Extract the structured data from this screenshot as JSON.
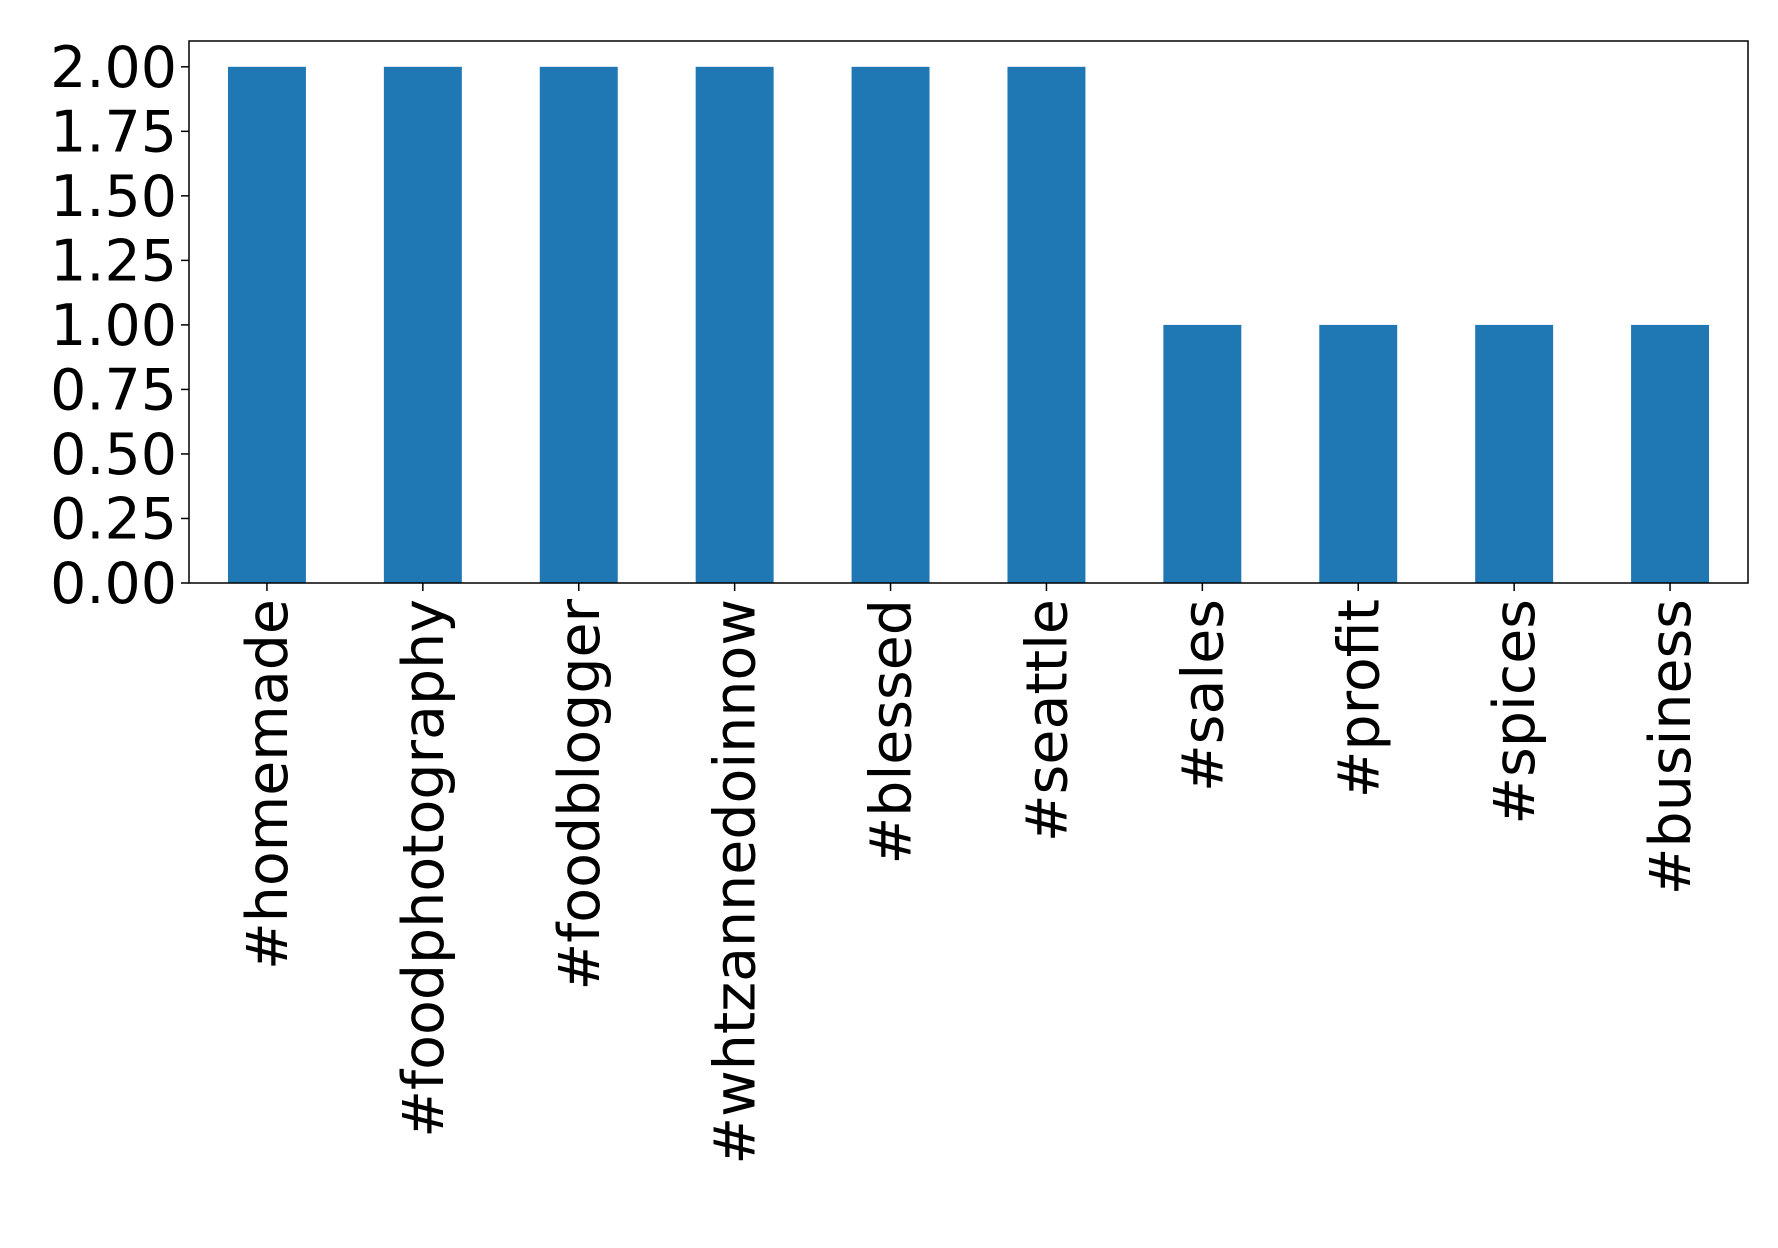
{
  "chart_data": {
    "type": "bar",
    "categories": [
      "#homemade",
      "#foodphotography",
      "#foodblogger",
      "#whtzannedoinnow",
      "#blessed",
      "#seattle",
      "#sales",
      "#profit",
      "#spices",
      "#business"
    ],
    "values": [
      2,
      2,
      2,
      2,
      2,
      2,
      1,
      1,
      1,
      1
    ],
    "color": "#1f77b4",
    "ylim": [
      0,
      2.1
    ],
    "yticks": [
      {
        "value": 0,
        "label": "0.00"
      },
      {
        "value": 0.25,
        "label": "0.25"
      },
      {
        "value": 0.5,
        "label": "0.50"
      },
      {
        "value": 0.75,
        "label": "0.75"
      },
      {
        "value": 1,
        "label": "1.00"
      },
      {
        "value": 1.25,
        "label": "1.25"
      },
      {
        "value": 1.5,
        "label": "1.50"
      },
      {
        "value": 1.75,
        "label": "1.75"
      },
      {
        "value": 2,
        "label": "2.00"
      }
    ],
    "grid": false
  }
}
